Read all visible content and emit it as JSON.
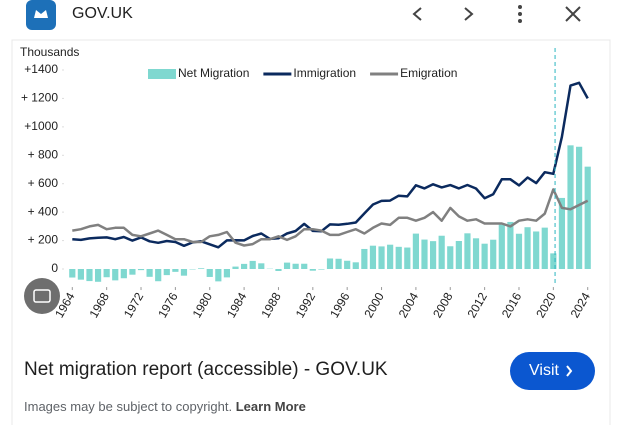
{
  "header": {
    "site": "GOV.UK"
  },
  "chart_data": {
    "type": "bar_line",
    "y_label": "Thousands",
    "x": [
      1964,
      1965,
      1966,
      1967,
      1968,
      1969,
      1970,
      1971,
      1972,
      1973,
      1974,
      1975,
      1976,
      1977,
      1978,
      1979,
      1980,
      1981,
      1982,
      1983,
      1984,
      1985,
      1986,
      1987,
      1988,
      1989,
      1990,
      1991,
      1992,
      1993,
      1994,
      1995,
      1996,
      1997,
      1998,
      1999,
      2000,
      2001,
      2002,
      2003,
      2004,
      2005,
      2006,
      2007,
      2008,
      2009,
      2010,
      2011,
      2012,
      2013,
      2014,
      2015,
      2016,
      2017,
      2018,
      2019,
      2020,
      2021,
      2022,
      2023,
      2024
    ],
    "series": [
      {
        "name": "Net Migration",
        "kind": "bar",
        "color": "#7fd8d0",
        "values": [
          -60,
          -75,
          -85,
          -90,
          -58,
          -80,
          -65,
          -40,
          -8,
          -55,
          -86,
          -43,
          -20,
          -47,
          -3,
          5,
          -56,
          -87,
          -59,
          17,
          36,
          57,
          40,
          2,
          -14,
          45,
          37,
          37,
          -12,
          -4,
          74,
          72,
          58,
          47,
          141,
          164,
          159,
          171,
          156,
          151,
          249,
          207,
          196,
          234,
          160,
          197,
          251,
          216,
          178,
          206,
          312,
          331,
          248,
          294,
          264,
          291,
          110,
          500,
          870,
          860,
          720
        ]
      },
      {
        "name": "Immigration",
        "kind": "line",
        "color": "#0b2a5e",
        "values": [
          210,
          205,
          215,
          220,
          222,
          210,
          225,
          200,
          222,
          195,
          184,
          197,
          190,
          163,
          187,
          195,
          174,
          153,
          201,
          202,
          201,
          232,
          250,
          212,
          216,
          250,
          267,
          317,
          268,
          266,
          314,
          312,
          318,
          327,
          391,
          454,
          479,
          481,
          516,
          511,
          589,
          567,
          596,
          574,
          590,
          567,
          591,
          566,
          498,
          526,
          632,
          631,
          588,
          644,
          604,
          681,
          670,
          930,
          1290,
          1310,
          1200
        ]
      },
      {
        "name": "Emigration",
        "kind": "line",
        "color": "#808080",
        "values": [
          270,
          280,
          300,
          310,
          280,
          290,
          290,
          240,
          230,
          250,
          270,
          240,
          210,
          210,
          190,
          190,
          230,
          240,
          260,
          185,
          165,
          175,
          210,
          210,
          230,
          205,
          230,
          280,
          280,
          270,
          240,
          240,
          260,
          280,
          250,
          290,
          320,
          310,
          360,
          360,
          340,
          360,
          400,
          340,
          430,
          370,
          340,
          350,
          320,
          320,
          320,
          300,
          340,
          350,
          340,
          390,
          560,
          430,
          420,
          450,
          480
        ]
      }
    ],
    "xlim": [
      1963.5,
      2024.5
    ],
    "xticks": [
      1964,
      1968,
      1972,
      1976,
      1980,
      1984,
      1988,
      1992,
      1996,
      2000,
      2004,
      2008,
      2012,
      2016,
      2020,
      2024
    ],
    "ylim": [
      -120,
      1400
    ],
    "yticks": [
      {
        "value": 0,
        "label": "0"
      },
      {
        "value": 200,
        "label": "+ 200"
      },
      {
        "value": 400,
        "label": "+ 400"
      },
      {
        "value": 600,
        "label": "+ 600"
      },
      {
        "value": 800,
        "label": "+ 800"
      },
      {
        "value": 1000,
        "label": "+1000"
      },
      {
        "value": 1200,
        "label": "+ 1200"
      },
      {
        "value": 1400,
        "label": "+1400"
      }
    ],
    "reference_line_x": 2020.2,
    "legend": "top"
  },
  "caption": {
    "title": "Net migration report (accessible) - GOV.UK",
    "button": "Visit",
    "note": "Images may be subject to copyright.",
    "link": "Learn More"
  }
}
